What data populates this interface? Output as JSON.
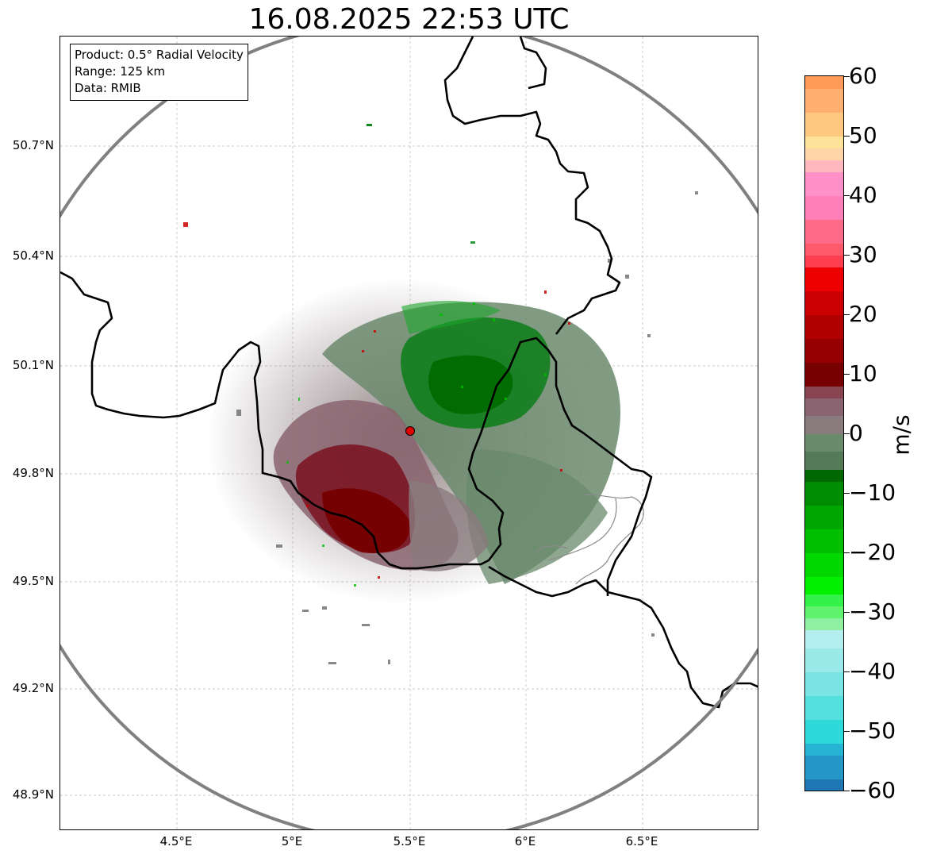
{
  "title": "16.08.2025 22:53 UTC",
  "info": {
    "product": "Product: 0.5° Radial Velocity",
    "range": "Range: 125 km",
    "source": "Data: RMIB"
  },
  "map": {
    "lat_ticks": [
      "50.7°N",
      "50.4°N",
      "50.1°N",
      "49.8°N",
      "49.5°N",
      "49.2°N",
      "48.9°N"
    ],
    "lon_ticks": [
      "4.5°E",
      "5°E",
      "5.5°E",
      "6°E",
      "6.5°E"
    ],
    "radar_site": "radar-location-marker",
    "range_ring": "125 km range circle",
    "colors": {
      "range_ring": "#808080",
      "border": "#000000",
      "inner_border": "#8a8a8a",
      "radar_marker": "#e00000"
    }
  },
  "colorbar": {
    "unit": "m/s",
    "min": -60,
    "max": 60,
    "tick_labels": [
      "60",
      "50",
      "40",
      "30",
      "20",
      "10",
      "0",
      "−10",
      "−20",
      "−30",
      "−40",
      "−50",
      "−60"
    ],
    "segments": [
      {
        "from": -60,
        "to": -58,
        "color": "#1f77b4"
      },
      {
        "from": -58,
        "to": -54,
        "color": "#2596c8"
      },
      {
        "from": -54,
        "to": -52,
        "color": "#26b4d4"
      },
      {
        "from": -52,
        "to": -48,
        "color": "#2fd9da"
      },
      {
        "from": -48,
        "to": -44,
        "color": "#55e0e0"
      },
      {
        "from": -44,
        "to": -40,
        "color": "#7ae4e4"
      },
      {
        "from": -40,
        "to": -36,
        "color": "#9aeaea"
      },
      {
        "from": -36,
        "to": -33,
        "color": "#b5eeee"
      },
      {
        "from": -33,
        "to": -31,
        "color": "#8ef0a0"
      },
      {
        "from": -31,
        "to": -29,
        "color": "#5ff36e"
      },
      {
        "from": -29,
        "to": -27,
        "color": "#33f24a"
      },
      {
        "from": -27,
        "to": -24,
        "color": "#00f000"
      },
      {
        "from": -24,
        "to": -20,
        "color": "#00d800"
      },
      {
        "from": -20,
        "to": -16,
        "color": "#00bf00"
      },
      {
        "from": -16,
        "to": -12,
        "color": "#00a600"
      },
      {
        "from": -12,
        "to": -8,
        "color": "#008c00"
      },
      {
        "from": -8,
        "to": -6,
        "color": "#006800"
      },
      {
        "from": -6,
        "to": -3,
        "color": "#547a58"
      },
      {
        "from": -3,
        "to": 0,
        "color": "#6a8a6c"
      },
      {
        "from": 0,
        "to": 3,
        "color": "#8a7b7e"
      },
      {
        "from": 3,
        "to": 6,
        "color": "#8a6470"
      },
      {
        "from": 6,
        "to": 8,
        "color": "#884450"
      },
      {
        "from": 8,
        "to": 12,
        "color": "#760000"
      },
      {
        "from": 12,
        "to": 16,
        "color": "#960000"
      },
      {
        "from": 16,
        "to": 20,
        "color": "#b00000"
      },
      {
        "from": 20,
        "to": 24,
        "color": "#cc0000"
      },
      {
        "from": 24,
        "to": 28,
        "color": "#ee0000"
      },
      {
        "from": 28,
        "to": 30,
        "color": "#ff3f50"
      },
      {
        "from": 30,
        "to": 32,
        "color": "#ff5a6a"
      },
      {
        "from": 32,
        "to": 36,
        "color": "#ff6a88"
      },
      {
        "from": 36,
        "to": 40,
        "color": "#ff80b8"
      },
      {
        "from": 40,
        "to": 44,
        "color": "#ff90c8"
      },
      {
        "from": 44,
        "to": 46,
        "color": "#ffb8c0"
      },
      {
        "from": 46,
        "to": 48,
        "color": "#ffd5a8"
      },
      {
        "from": 48,
        "to": 50,
        "color": "#ffe29a"
      },
      {
        "from": 50,
        "to": 54,
        "color": "#ffc880"
      },
      {
        "from": 54,
        "to": 58,
        "color": "#ffb070"
      },
      {
        "from": 58,
        "to": 60,
        "color": "#ff9a58"
      }
    ]
  }
}
